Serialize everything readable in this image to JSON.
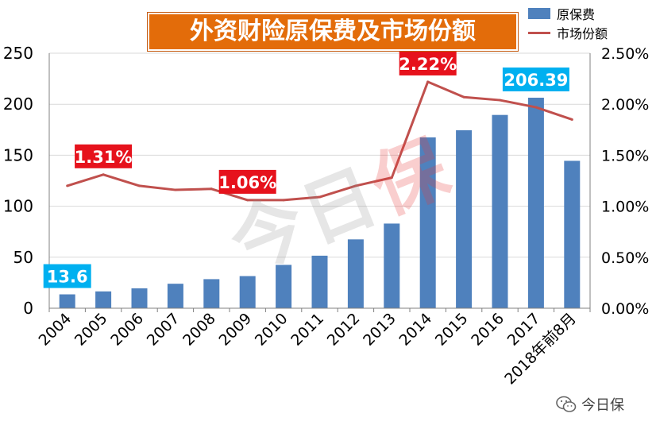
{
  "chart_data": {
    "type": "bar",
    "title": "外资财险原保费及市场份额",
    "categories": [
      "2004",
      "2005",
      "2006",
      "2007",
      "2008",
      "2009",
      "2010",
      "2011",
      "2012",
      "2013",
      "2014",
      "2015",
      "2016",
      "2017",
      "2018年前8月"
    ],
    "series": [
      {
        "name": "原保费",
        "type": "bar",
        "axis": "left",
        "color": "#4f81bd",
        "values": [
          13.6,
          16.5,
          19.5,
          24,
          28.5,
          31.5,
          42.5,
          51.5,
          67.5,
          83,
          167.5,
          174.5,
          189.5,
          206.39,
          144.5
        ]
      },
      {
        "name": "市场份额",
        "type": "line",
        "axis": "right",
        "color": "#c0504d",
        "values": [
          1.2,
          1.31,
          1.2,
          1.16,
          1.17,
          1.06,
          1.06,
          1.09,
          1.2,
          1.28,
          2.22,
          2.07,
          2.04,
          1.97,
          1.85
        ]
      }
    ],
    "y_left": {
      "min": 0,
      "max": 250,
      "ticks": [
        "0",
        "50",
        "100",
        "150",
        "200",
        "250"
      ]
    },
    "y_right": {
      "min": 0,
      "max": 2.5,
      "ticks": [
        "0.00%",
        "0.50%",
        "1.00%",
        "1.50%",
        "2.00%",
        "2.50%"
      ]
    },
    "grid": true,
    "legend_position": "top-right",
    "callouts": [
      {
        "series": "原保费",
        "index": 0,
        "text": "13.6",
        "color": "#00b0f0"
      },
      {
        "series": "原保费",
        "index": 13,
        "text": "206.39",
        "color": "#00b0f0"
      },
      {
        "series": "市场份额",
        "index": 1,
        "text": "1.31%",
        "color": "#e6121c"
      },
      {
        "series": "市场份额",
        "index": 5,
        "text": "1.06%",
        "color": "#e6121c"
      },
      {
        "series": "市场份额",
        "index": 10,
        "text": "2.22%",
        "color": "#e6121c"
      }
    ]
  },
  "watermark": {
    "text_a": "今日",
    "text_b": "保"
  },
  "brand": {
    "name": "今日保",
    "icon": "wechat-icon"
  }
}
